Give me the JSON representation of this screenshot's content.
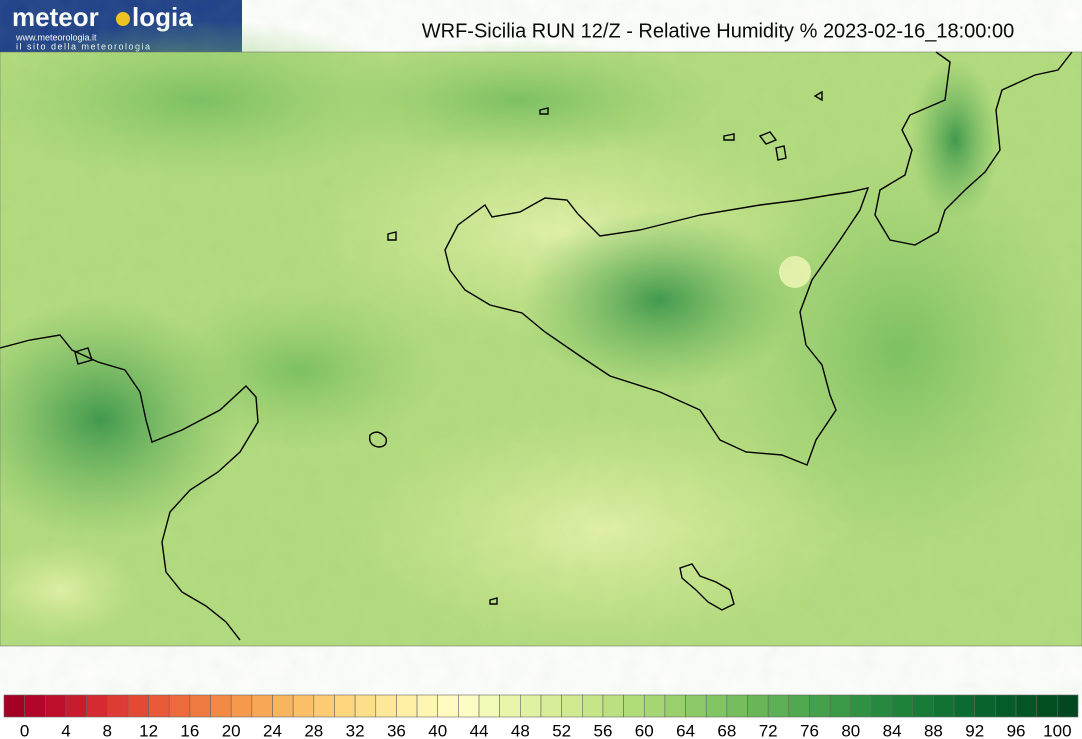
{
  "header": {
    "logo_left": "meteor",
    "logo_right": "logia",
    "url": "www.meteorologia.it",
    "tagline": "il sito della meteorologia",
    "title": "WRF-Sicilia RUN 12/Z - Relative Humidity % 2023-02-16_18:00:00"
  },
  "colorbar": {
    "ticks": [
      0,
      4,
      8,
      12,
      16,
      20,
      24,
      28,
      32,
      36,
      40,
      44,
      48,
      52,
      56,
      60,
      64,
      68,
      72,
      76,
      80,
      84,
      88,
      92,
      96,
      100
    ],
    "colors": [
      "#a50026",
      "#b1062a",
      "#bd0f2c",
      "#c81b2e",
      "#d42a30",
      "#dd3b33",
      "#e34a35",
      "#e85a38",
      "#ec6a3c",
      "#ef7a41",
      "#f28a46",
      "#f5994d",
      "#f7a755",
      "#f9b45e",
      "#fbc067",
      "#fccb72",
      "#fdd57d",
      "#fedf89",
      "#fee796",
      "#feefa4",
      "#fff5b2",
      "#fffabf",
      "#fcfcc4",
      "#f3f9b8",
      "#eaf5ac",
      "#e1f1a2",
      "#d8ed98",
      "#cfe98f",
      "#c5e587",
      "#bbe080",
      "#b0db79",
      "#a5d673",
      "#99d06d",
      "#8dca67",
      "#81c462",
      "#75bd5d",
      "#68b658",
      "#5caf54",
      "#50a84f",
      "#45a04b",
      "#3a9947",
      "#309143",
      "#26893f",
      "#1e823b",
      "#177a37",
      "#117233",
      "#0c6b30",
      "#08632c",
      "#055c29",
      "#035526",
      "#024e23",
      "#014720"
    ]
  }
}
